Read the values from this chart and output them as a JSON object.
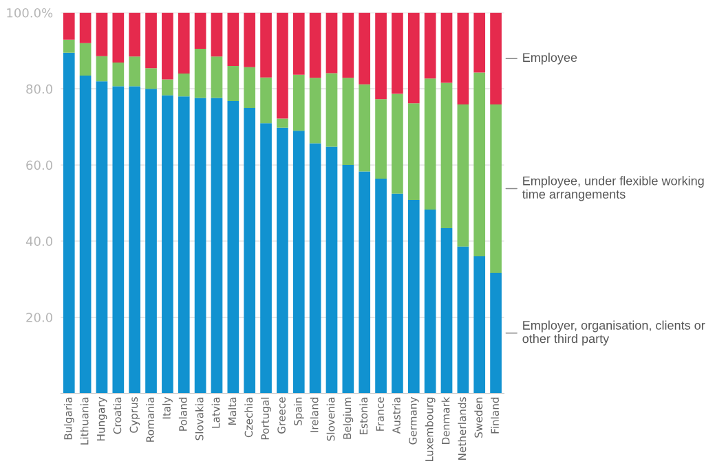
{
  "chart_data": {
    "type": "bar",
    "stacked": true,
    "categories": [
      "Bulgaria",
      "Lithuania",
      "Hungary",
      "Croatia",
      "Cyprus",
      "Romania",
      "Italy",
      "Poland",
      "Slovakia",
      "Latvia",
      "Malta",
      "Czechia",
      "Portugal",
      "Greece",
      "Spain",
      "Ireland",
      "Slovenia",
      "Belgium",
      "Estonia",
      "France",
      "Austria",
      "Germany",
      "Luxembourg",
      "Denmark",
      "Netherlands",
      "Sweden",
      "Finland"
    ],
    "series": [
      {
        "name": "Employer, organisation, clients or other third party",
        "color": "#1192d0",
        "values": [
          89.5,
          83.5,
          82.0,
          80.7,
          80.7,
          80.0,
          78.3,
          78.0,
          77.6,
          77.6,
          76.8,
          75.0,
          71.0,
          69.8,
          69.0,
          65.7,
          64.8,
          60.0,
          58.3,
          56.4,
          52.5,
          50.8,
          48.3,
          43.4,
          38.6,
          36.0,
          31.7
        ]
      },
      {
        "name": "Employee, under flexible working time arrangements",
        "color": "#7dc462",
        "values": [
          3.4,
          8.5,
          6.6,
          6.2,
          7.8,
          5.4,
          4.2,
          6.0,
          12.9,
          10.9,
          9.2,
          10.7,
          12.0,
          2.4,
          14.7,
          17.2,
          19.3,
          22.9,
          22.9,
          20.9,
          26.2,
          25.4,
          34.4,
          38.2,
          37.3,
          48.3,
          44.2
        ]
      },
      {
        "name": "Employee",
        "color": "#e52a4d",
        "values": [
          7.1,
          8.0,
          11.4,
          13.1,
          11.5,
          14.6,
          17.5,
          16.0,
          9.5,
          11.5,
          14.0,
          14.3,
          17.0,
          27.8,
          16.3,
          17.1,
          15.9,
          17.1,
          18.8,
          22.7,
          21.3,
          23.8,
          17.3,
          18.4,
          24.1,
          15.7,
          24.1
        ]
      }
    ],
    "ylim": [
      0,
      100
    ],
    "yticks": [
      {
        "value": 20,
        "label": "20.0"
      },
      {
        "value": 40,
        "label": "40.0"
      },
      {
        "value": 60,
        "label": "60.0"
      },
      {
        "value": 80,
        "label": "80.0"
      },
      {
        "value": 100,
        "label": "100.0%"
      }
    ],
    "grid": "y",
    "legend": false
  }
}
